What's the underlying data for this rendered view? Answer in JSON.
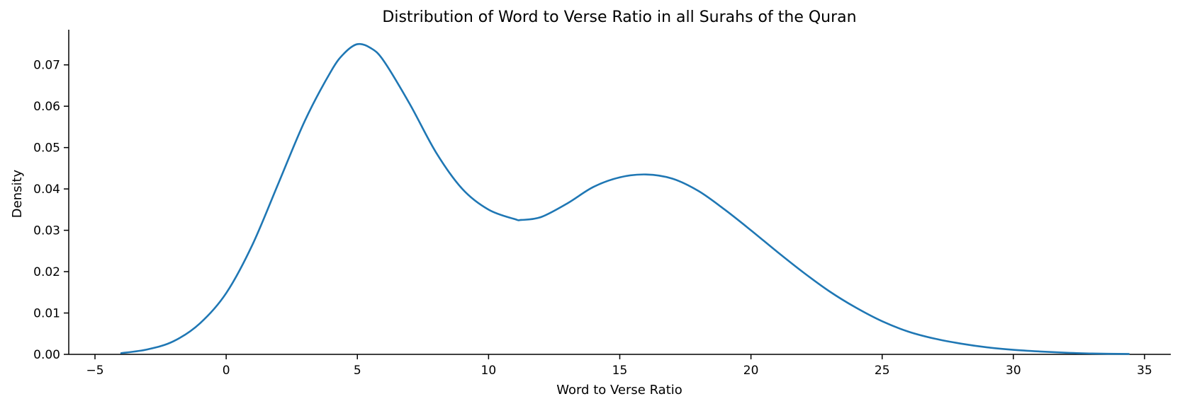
{
  "chart_data": {
    "type": "line",
    "title": "Distribution of Word to Verse Ratio in all Surahs of the Quran",
    "xlabel": "Word to Verse Ratio",
    "ylabel": "Density",
    "xlim": [
      -6,
      36
    ],
    "ylim": [
      0,
      0.0785
    ],
    "xticks": [
      -5,
      0,
      5,
      10,
      15,
      20,
      25,
      30,
      35
    ],
    "xtick_labels": [
      "−5",
      "0",
      "5",
      "10",
      "15",
      "20",
      "25",
      "30",
      "35"
    ],
    "yticks": [
      0,
      0.01,
      0.02,
      0.03,
      0.04,
      0.05,
      0.06,
      0.07
    ],
    "ytick_labels": [
      "0.00",
      "0.01",
      "0.02",
      "0.03",
      "0.04",
      "0.05",
      "0.06",
      "0.07"
    ],
    "grid": false,
    "spines": [
      "left",
      "bottom"
    ],
    "series": [
      {
        "color": "#1f77b4",
        "x": [
          -4.0,
          -3.0,
          -2.0,
          -1.0,
          0.0,
          1.0,
          2.0,
          3.0,
          4.0,
          4.5,
          5.0,
          5.5,
          6.0,
          7.0,
          8.0,
          9.0,
          10.0,
          11.0,
          11.25,
          12.0,
          13.0,
          14.0,
          15.0,
          16.0,
          17.0,
          18.0,
          19.0,
          20.0,
          21.0,
          22.0,
          23.0,
          24.0,
          25.0,
          26.0,
          27.0,
          28.0,
          29.0,
          30.0,
          31.0,
          32.0,
          33.0,
          34.4
        ],
        "y": [
          0.0003,
          0.0012,
          0.0032,
          0.0075,
          0.0148,
          0.0265,
          0.0415,
          0.0565,
          0.0685,
          0.0728,
          0.075,
          0.0741,
          0.071,
          0.0605,
          0.0488,
          0.04,
          0.035,
          0.0327,
          0.0325,
          0.0332,
          0.0365,
          0.0405,
          0.0428,
          0.0435,
          0.0425,
          0.0395,
          0.035,
          0.03,
          0.0248,
          0.0198,
          0.0152,
          0.0113,
          0.008,
          0.0055,
          0.0038,
          0.0026,
          0.0017,
          0.0011,
          0.0007,
          0.0004,
          0.0002,
          0.0001
        ]
      }
    ]
  }
}
